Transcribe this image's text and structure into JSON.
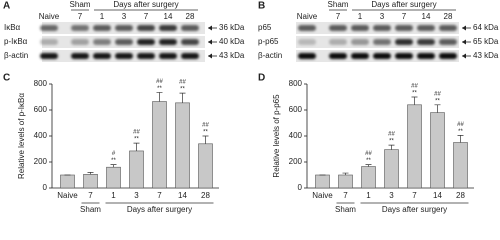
{
  "panels": [
    "A",
    "B",
    "C",
    "D"
  ],
  "blots": [
    {
      "lanes": [
        "Naive",
        "7",
        "1",
        "3",
        "7",
        "14",
        "28"
      ],
      "groups": [
        "Sham",
        "Days after surgery"
      ],
      "rows": [
        "IκBα",
        "p-IκBα",
        "β-actin"
      ],
      "sizes": [
        "36 kDa",
        "40 kDa",
        "43 kDa"
      ]
    },
    {
      "lanes": [
        "Naive",
        "7",
        "1",
        "3",
        "7",
        "14",
        "28"
      ],
      "groups": [
        "Sham",
        "Days after surgery"
      ],
      "rows": [
        "p65",
        "p-p65",
        "β-actin"
      ],
      "sizes": [
        "64 kDa",
        "65 kDa",
        "43 kDa"
      ]
    }
  ],
  "chart_data": [
    {
      "type": "bar",
      "y_label": "Relative levels of p-IκBα",
      "categories": [
        "Naive",
        "7",
        "1",
        "3",
        "7",
        "14",
        "28"
      ],
      "group_labels": [
        "Sham",
        "Days after surgery"
      ],
      "values": [
        100,
        105,
        160,
        285,
        665,
        655,
        340
      ],
      "errors": [
        0,
        15,
        20,
        60,
        70,
        75,
        60
      ],
      "annotations": [
        null,
        null,
        [
          "#",
          "**"
        ],
        [
          "##",
          "**"
        ],
        [
          "##",
          "**"
        ],
        [
          "##",
          "**"
        ],
        [
          "##",
          "**"
        ]
      ],
      "color": "#c8c8c8",
      "ylim": [
        0,
        800
      ],
      "yticks": [
        0,
        200,
        400,
        600,
        800
      ]
    },
    {
      "type": "bar",
      "y_label": "Relative levels of p-p65",
      "categories": [
        "Naive",
        "7",
        "1",
        "3",
        "7",
        "14",
        "28"
      ],
      "group_labels": [
        "Sham",
        "Days after surgery"
      ],
      "values": [
        100,
        100,
        165,
        295,
        640,
        580,
        350
      ],
      "errors": [
        0,
        15,
        15,
        35,
        60,
        60,
        55
      ],
      "annotations": [
        null,
        null,
        [
          "##",
          "**"
        ],
        [
          "##",
          "**"
        ],
        [
          "##",
          "**"
        ],
        [
          "##",
          "**"
        ],
        [
          "##",
          "**"
        ]
      ],
      "color": "#c8c8c8",
      "ylim": [
        0,
        800
      ],
      "yticks": [
        0,
        200,
        400,
        600,
        800
      ]
    }
  ]
}
